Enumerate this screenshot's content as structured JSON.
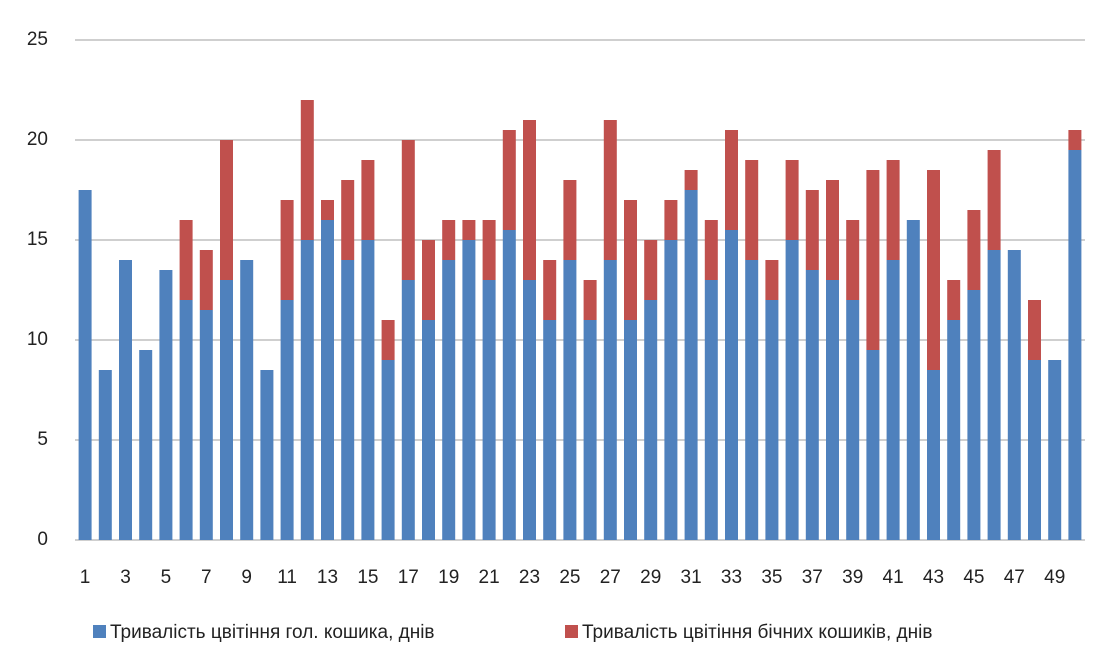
{
  "chart_data": {
    "type": "stacked_bar",
    "categories": [
      "1",
      null,
      "3",
      null,
      "5",
      null,
      "7",
      null,
      "9",
      null,
      "11",
      null,
      "13",
      null,
      "15",
      null,
      "17",
      null,
      "19",
      null,
      "21",
      null,
      "23",
      null,
      "25",
      null,
      "27",
      null,
      "29",
      null,
      "31",
      null,
      "33",
      null,
      "35",
      null,
      "37",
      null,
      "39",
      null,
      "41",
      null,
      "43",
      null,
      "45",
      null,
      "47",
      null,
      "49",
      null
    ],
    "series": [
      {
        "name": "Тривалість цвітіння гол. кошика, днів",
        "color": "#4f81bd",
        "values": [
          17.5,
          8.5,
          14,
          9.5,
          13.5,
          12,
          11.5,
          13,
          14,
          8.5,
          12,
          15,
          16,
          14,
          15,
          9,
          13,
          11,
          14,
          15,
          13,
          15.5,
          13,
          11,
          14,
          11,
          14,
          11,
          12,
          15,
          17.5,
          13,
          15.5,
          14,
          12,
          15,
          13.5,
          13,
          12,
          9.5,
          14,
          16,
          8.5,
          11,
          12.5,
          14.5,
          14.5,
          9,
          9,
          19.5
        ]
      },
      {
        "name": "Тривалість цвітіння бічних кошиків, днів",
        "color": "#c0504d",
        "values": [
          0,
          0,
          0,
          0,
          0,
          4,
          3,
          7,
          0,
          0,
          5,
          7,
          1,
          4,
          4,
          2,
          7,
          4,
          2,
          1,
          3,
          5,
          8,
          3,
          4,
          2,
          7,
          6,
          3,
          2,
          1,
          3,
          5,
          5,
          2,
          4,
          4,
          5,
          4,
          9,
          5,
          0,
          10,
          2,
          4,
          5,
          0,
          3,
          0,
          1
        ]
      }
    ],
    "ylim": [
      0,
      25
    ],
    "yticks": [
      0,
      5,
      10,
      15,
      20,
      25
    ],
    "grid": true,
    "legend": "bottom"
  }
}
